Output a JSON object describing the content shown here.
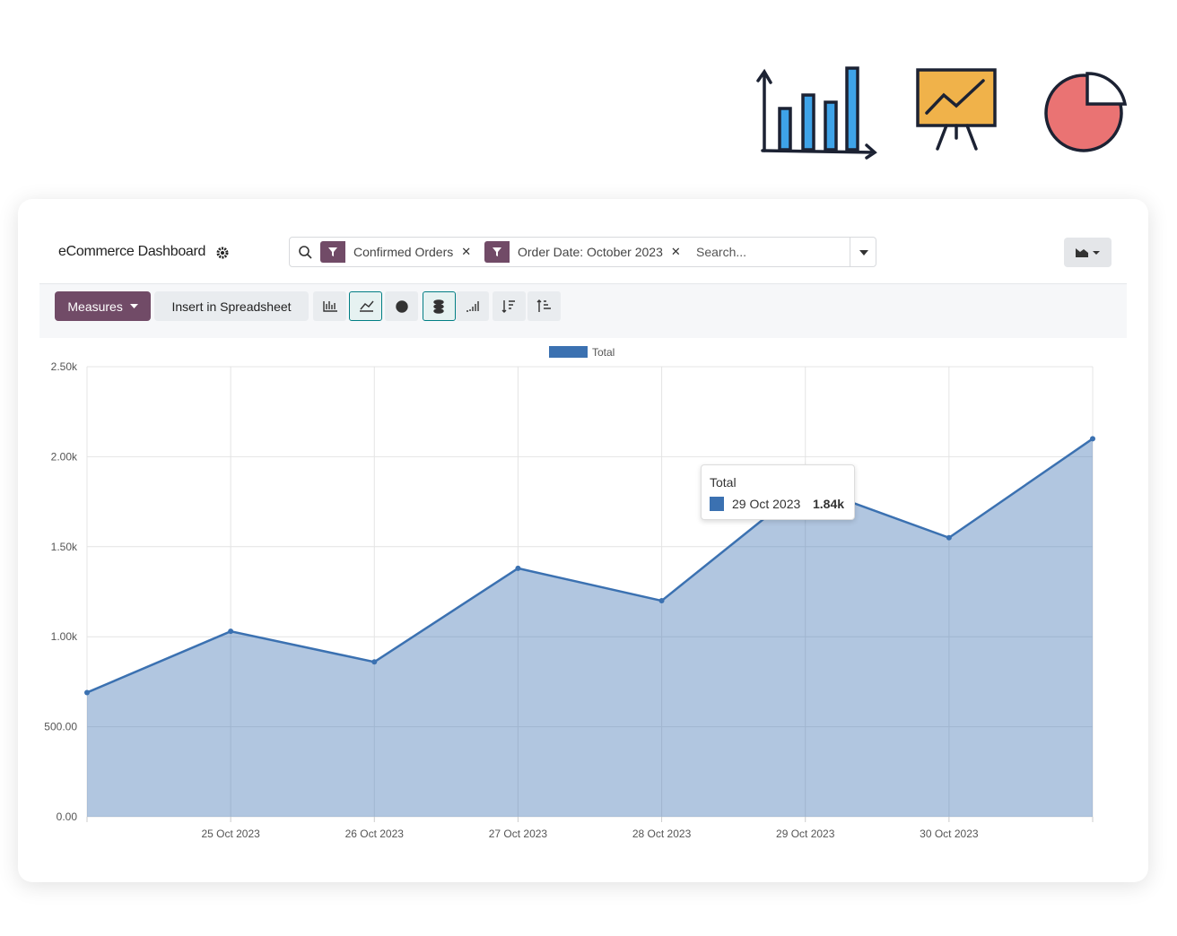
{
  "header": {
    "title": "eCommerce Dashboard",
    "facets": [
      "Confirmed Orders",
      "Order Date: October 2023"
    ],
    "search_placeholder": "Search..."
  },
  "toolbar": {
    "buttons": [
      "Measures",
      "Insert in Spreadsheet"
    ]
  },
  "chart_data": {
    "type": "area",
    "categories": [
      null,
      "25 Oct 2023",
      "26 Oct 2023",
      "27 Oct 2023",
      "28 Oct 2023",
      "29 Oct 2023",
      "30 Oct 2023",
      null
    ],
    "series": [
      {
        "name": "Total",
        "color": "#3b71b1",
        "values": [
          690,
          1030,
          860,
          1380,
          1200,
          1840,
          1550,
          2100
        ],
        "value_labels": [
          null,
          null,
          null,
          null,
          null,
          "1.84k",
          null,
          null
        ]
      }
    ],
    "ylim": [
      0,
      2500
    ],
    "yticks": [
      {
        "value": 0,
        "label": "0.00"
      },
      {
        "value": 500,
        "label": "500.00"
      },
      {
        "value": 1000,
        "label": "1.00k"
      },
      {
        "value": 1500,
        "label": "1.50k"
      },
      {
        "value": 2000,
        "label": "2.00k"
      },
      {
        "value": 2500,
        "label": "2.50k"
      }
    ],
    "grid": true,
    "tooltip_index": 5
  }
}
